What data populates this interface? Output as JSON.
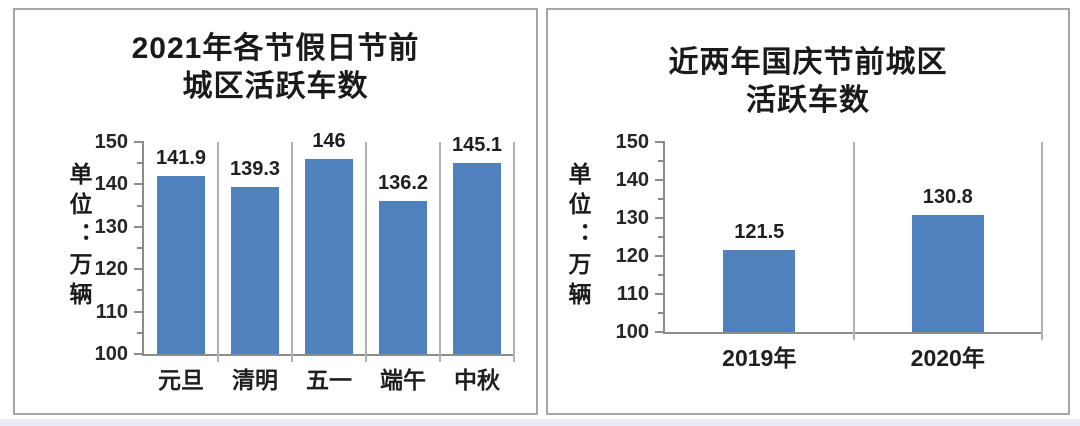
{
  "page": {
    "background": "#ffffff",
    "bottom_strip_color": "#e9ecf5"
  },
  "chart_data": [
    {
      "type": "bar",
      "title": "2021年各节假日节前城区活跃车数",
      "title_lines": [
        "2021年各节假日节前",
        "城区活跃车数"
      ],
      "ylabel": "单位：万辆",
      "xlabel": "",
      "categories": [
        "元旦",
        "清明",
        "五一",
        "端午",
        "中秋"
      ],
      "values": [
        141.9,
        139.3,
        146,
        136.2,
        145.1
      ],
      "ylim": [
        100,
        150
      ],
      "yticks": [
        100,
        110,
        120,
        130,
        140,
        150
      ],
      "ytick_major": 10,
      "ytick_minor": 5,
      "legend": "none",
      "grid": "vertical category separators",
      "data_labels": "outside end",
      "bar_color": "#4E81BD",
      "axis_color": "#8c8c8c",
      "separator_color": "#b0b0b0",
      "bar_width_ratio": 0.66
    },
    {
      "type": "bar",
      "title": "近两年国庆节前城区活跃车数",
      "title_lines": [
        "近两年国庆节前城区",
        "活跃车数"
      ],
      "ylabel": "单位：万辆",
      "xlabel": "",
      "categories": [
        "2019年",
        "2020年"
      ],
      "values": [
        121.5,
        130.8
      ],
      "ylim": [
        100,
        150
      ],
      "yticks": [
        100,
        110,
        120,
        130,
        140,
        150
      ],
      "ytick_major": 10,
      "ytick_minor": 5,
      "legend": "none",
      "grid": "vertical category separators",
      "data_labels": "outside end",
      "bar_color": "#4E81BD",
      "axis_color": "#8c8c8c",
      "separator_color": "#b0b0b0",
      "bar_width_ratio": 0.38
    }
  ]
}
